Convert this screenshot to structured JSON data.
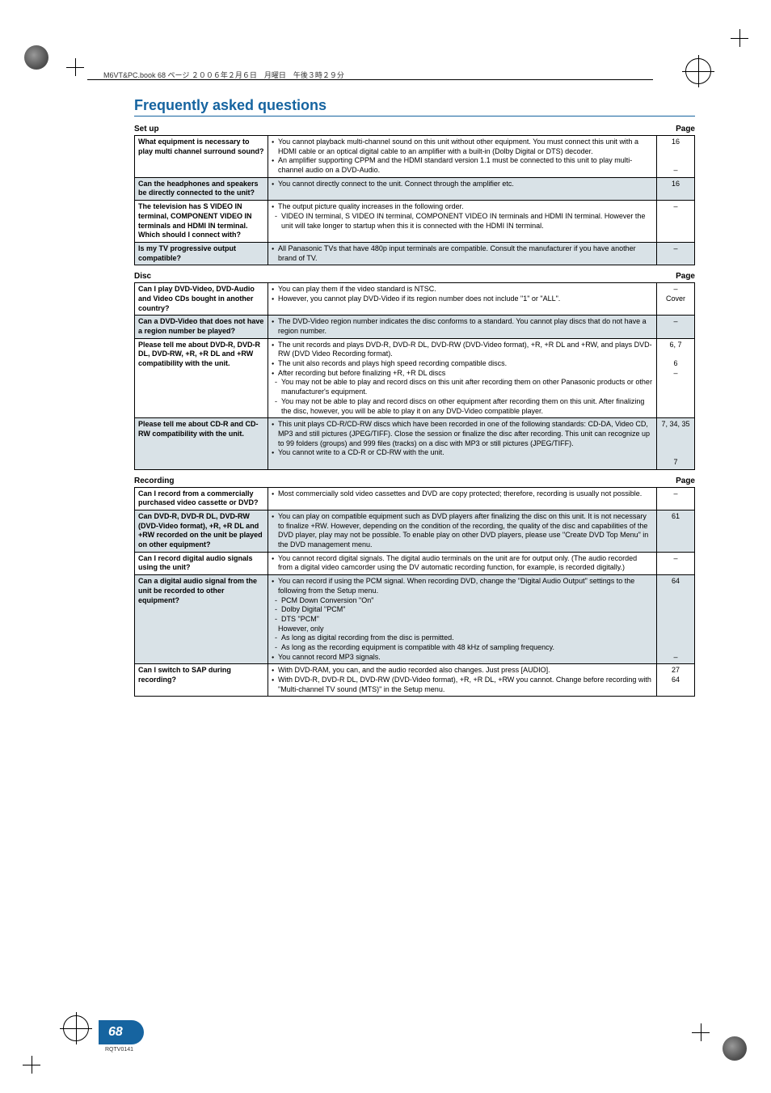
{
  "meta_header": "M6VT&PC.book  68 ページ  ２００６年２月６日　月曜日　午後３時２９分",
  "main_title": "Frequently asked questions",
  "page_number": "68",
  "code": "RQTV0141",
  "page_label": "Page",
  "sections": {
    "setup": {
      "title": "Set up",
      "rows": [
        {
          "shaded": false,
          "q": "What equipment is necessary to play multi channel surround sound?",
          "a": [
            {
              "type": "bullet",
              "text": "You cannot playback multi-channel sound on this unit without other equipment. You must connect this unit with a HDMI cable or an optical digital cable to an amplifier with a built-in (Dolby Digital or DTS) decoder."
            },
            {
              "type": "bullet",
              "text": "An amplifier supporting CPPM and the HDMI standard version 1.1 must be connected to this unit to play multi-channel audio on a DVD-Audio."
            }
          ],
          "page": "16\n\n\n–"
        },
        {
          "shaded": true,
          "q": "Can the headphones and speakers be directly connected to the unit?",
          "a": [
            {
              "type": "bullet",
              "text": "You cannot directly connect to the unit. Connect through the amplifier etc."
            }
          ],
          "page": "16"
        },
        {
          "shaded": false,
          "q": "The television has S VIDEO IN terminal, COMPONENT VIDEO IN terminals and HDMI IN terminal. Which should I connect with?",
          "a": [
            {
              "type": "bullet",
              "text": "The output picture quality increases in the following order."
            },
            {
              "type": "sub",
              "text": "VIDEO IN terminal, S VIDEO IN terminal, COMPONENT VIDEO IN terminals and HDMI IN terminal. However the unit will take longer to startup when this it is connected with the HDMI IN terminal."
            }
          ],
          "page": "–"
        },
        {
          "shaded": true,
          "q": "Is my TV progressive output compatible?",
          "a": [
            {
              "type": "bullet",
              "text": "All Panasonic TVs that have 480p input terminals are compatible. Consult the manufacturer if you have another brand of TV."
            }
          ],
          "page": "–"
        }
      ]
    },
    "disc": {
      "title": "Disc",
      "rows": [
        {
          "shaded": false,
          "q": "Can I play DVD-Video, DVD-Audio and Video CDs bought in another country?",
          "a": [
            {
              "type": "bullet",
              "text": "You can play them if the video standard is NTSC."
            },
            {
              "type": "bullet",
              "text": "However, you cannot play DVD-Video if its region number does not include \"1\" or \"ALL\"."
            }
          ],
          "page": "–\nCover"
        },
        {
          "shaded": true,
          "q": "Can a DVD-Video that does not have a region number be played?",
          "a": [
            {
              "type": "bullet",
              "text": "The DVD-Video region number indicates the disc conforms to a standard. You cannot play discs that do not have a region number."
            }
          ],
          "page": "–"
        },
        {
          "shaded": false,
          "q": "Please tell me about DVD-R, DVD-R DL, DVD-RW, +R, +R DL and +RW compatibility with the unit.",
          "a": [
            {
              "type": "bullet",
              "text": "The unit records and plays DVD-R, DVD-R DL, DVD-RW (DVD-Video format), +R, +R DL and +RW, and plays DVD-RW (DVD Video Recording format)."
            },
            {
              "type": "bullet",
              "text": "The unit also records and plays high speed recording compatible discs."
            },
            {
              "type": "bullet",
              "text": "After recording but before finalizing +R, +R DL discs"
            },
            {
              "type": "sub",
              "text": "You may not be able to play and record discs on this unit after recording them on other Panasonic products or other manufacturer's equipment."
            },
            {
              "type": "sub",
              "text": "You may not be able to play and record discs on other equipment after recording them on this unit. After finalizing the disc, however, you will be able to play it on any DVD-Video compatible player."
            }
          ],
          "page": "6, 7\n\n6\n–"
        },
        {
          "shaded": true,
          "q": "Please tell me about CD-R and CD-RW compatibility with the unit.",
          "a": [
            {
              "type": "bullet",
              "text": "This unit plays CD-R/CD-RW discs which have been recorded in one of the following standards: CD-DA, Video CD, MP3 and still pictures (JPEG/TIFF). Close the session or finalize the disc after recording. This unit can recognize up to 99 folders (groups) and 999 files (tracks) on a disc with MP3 or still pictures (JPEG/TIFF)."
            },
            {
              "type": "bullet",
              "text": "You cannot write to a CD-R or CD-RW with the unit."
            }
          ],
          "page": "7, 34, 35\n\n\n\n7"
        }
      ]
    },
    "recording": {
      "title": "Recording",
      "rows": [
        {
          "shaded": false,
          "q": "Can I record from a commercially purchased video cassette or DVD?",
          "a": [
            {
              "type": "bullet",
              "text": "Most commercially sold video cassettes and DVD are copy protected; therefore, recording is usually not possible."
            }
          ],
          "page": "–"
        },
        {
          "shaded": true,
          "q": "Can DVD-R, DVD-R DL, DVD-RW (DVD-Video format), +R, +R DL and +RW recorded on the unit be played on other equipment?",
          "a": [
            {
              "type": "bullet",
              "text": "You can play on compatible equipment such as DVD players after finalizing the disc on this unit. It is not necessary to finalize +RW. However, depending on the condition of the recording, the quality of the disc and capabilities of the DVD player, play may not be possible. To enable play on other DVD players, please use \"Create DVD Top Menu\" in the DVD management menu."
            }
          ],
          "page": "61"
        },
        {
          "shaded": false,
          "q": "Can I record digital audio signals using the unit?",
          "a": [
            {
              "type": "bullet",
              "text": "You cannot record digital signals. The digital audio terminals on the unit are for output only. (The audio recorded from a digital video camcorder using the DV automatic recording function, for example, is recorded digitally.)"
            }
          ],
          "page": "–"
        },
        {
          "shaded": true,
          "q": "Can a digital audio signal from the unit be recorded to other equipment?",
          "a": [
            {
              "type": "bullet",
              "text": "You can record if using the PCM signal. When recording DVD, change the \"Digital Audio Output\" settings to the following from the Setup menu."
            },
            {
              "type": "sub",
              "text": "PCM Down Conversion \"On\""
            },
            {
              "type": "sub",
              "text": "Dolby Digital \"PCM\""
            },
            {
              "type": "sub",
              "text": "DTS \"PCM\""
            },
            {
              "type": "plain",
              "text": "However, only"
            },
            {
              "type": "sub",
              "text": "As long as digital recording from the disc is permitted."
            },
            {
              "type": "sub",
              "text": "As long as the recording equipment is compatible with 48 kHz of sampling frequency."
            },
            {
              "type": "bullet",
              "text": "You cannot record MP3 signals."
            }
          ],
          "page": "64\n\n\n\n\n\n\n\n–"
        },
        {
          "shaded": false,
          "q": "Can I switch to SAP during recording?",
          "a": [
            {
              "type": "bullet",
              "text": "With DVD-RAM, you can, and the audio recorded also changes. Just press [AUDIO]."
            },
            {
              "type": "bullet",
              "text": "With DVD-R, DVD-R DL, DVD-RW (DVD-Video format), +R, +R DL, +RW you cannot. Change before recording with \"Multi-channel TV sound (MTS)\" in the Setup menu."
            }
          ],
          "page": "27\n64"
        }
      ]
    }
  }
}
